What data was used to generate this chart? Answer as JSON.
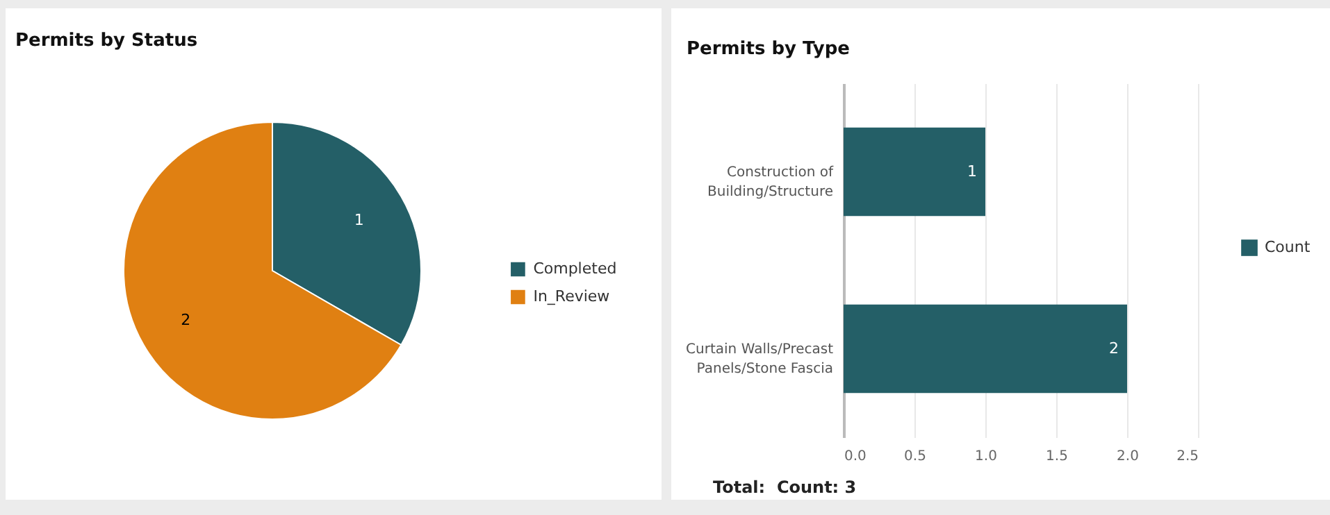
{
  "chart_data": [
    {
      "type": "pie",
      "title": "Permits by Status",
      "categories": [
        "Completed",
        "In_Review"
      ],
      "values": [
        1,
        2
      ],
      "colors": [
        "#245f67",
        "#e08012"
      ],
      "data_labels": true,
      "legend": "right"
    },
    {
      "type": "bar",
      "title": "Permits by Type",
      "orientation": "horizontal",
      "categories": [
        "Construction of Building/Structure",
        "Curtain Walls/Precast Panels/Stone Fascia"
      ],
      "series": [
        {
          "name": "Count",
          "color": "#245f67",
          "values": [
            1,
            2
          ]
        }
      ],
      "xlim": [
        0,
        2.5
      ],
      "xticks": [
        {
          "value": 0,
          "label": "0.0"
        },
        0.5,
        {
          "value": 1,
          "label": "1.0"
        },
        1.5,
        {
          "value": 2,
          "label": "2.0"
        },
        2.5
      ],
      "grid": "x",
      "data_labels": true,
      "legend": "right",
      "annotations": [
        "Total:  Count: 3"
      ]
    }
  ]
}
